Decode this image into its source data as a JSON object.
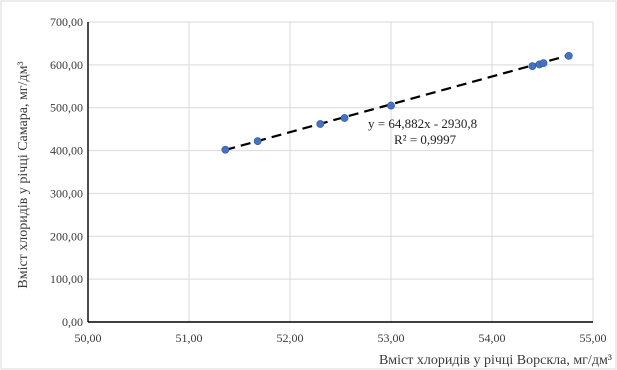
{
  "chart_data": {
    "type": "scatter",
    "title": "",
    "xlabel": "Вміст хлоридів у річці Ворскла, мг/дм³",
    "ylabel": "Вміст хлоридів у річці Самара, мг/дм³",
    "xlim": [
      50,
      55
    ],
    "ylim": [
      0,
      700
    ],
    "x_ticks": [
      "50,00",
      "51,00",
      "52,00",
      "53,00",
      "54,00",
      "55,00"
    ],
    "y_ticks": [
      "0,00",
      "100,00",
      "200,00",
      "300,00",
      "400,00",
      "500,00",
      "600,00",
      "700,00"
    ],
    "grid": "vertical and horizontal major gridlines",
    "legend": "none",
    "series": [
      {
        "points": [
          {
            "x": 51.36,
            "y": 402
          },
          {
            "x": 51.68,
            "y": 422
          },
          {
            "x": 52.3,
            "y": 462
          },
          {
            "x": 52.54,
            "y": 476
          },
          {
            "x": 53.0,
            "y": 505
          },
          {
            "x": 54.4,
            "y": 597
          },
          {
            "x": 54.47,
            "y": 601
          },
          {
            "x": 54.51,
            "y": 604
          },
          {
            "x": 54.76,
            "y": 621
          }
        ],
        "color": "#4472c4"
      }
    ],
    "trendline": {
      "style": "dashed",
      "color": "#000000",
      "slope": 64.882,
      "intercept": -2930.8,
      "x_range": [
        51.36,
        54.76
      ],
      "equation": "y = 64,882x - 2930,8",
      "r_squared": "R² = 0,9997"
    }
  }
}
